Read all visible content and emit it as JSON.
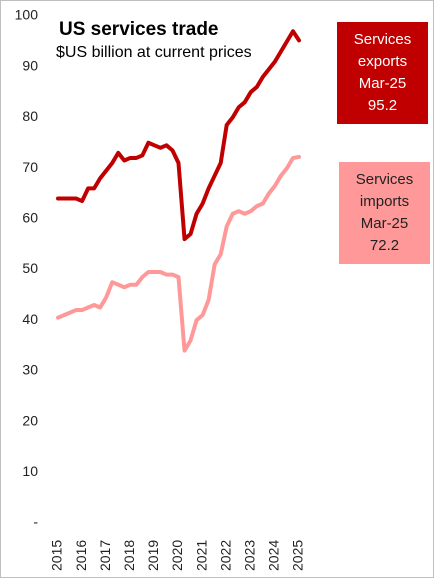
{
  "chart_data": {
    "type": "line",
    "title": "US services trade",
    "subtitle": "$US billion at current prices",
    "latest_label": "Mar-25",
    "categories": [
      "2015",
      null,
      null,
      null,
      "2016",
      null,
      null,
      null,
      "2017",
      null,
      null,
      null,
      "2018",
      null,
      null,
      null,
      "2019",
      null,
      null,
      null,
      "2020",
      null,
      null,
      null,
      "2021",
      null,
      null,
      null,
      "2022",
      null,
      null,
      null,
      "2023",
      null,
      null,
      null,
      "2024",
      null,
      null,
      null,
      "2025"
    ],
    "series": [
      {
        "name": "Services exports",
        "color": "#c00000",
        "values": [
          64,
          64,
          64,
          64,
          63.5,
          66,
          66,
          68,
          69.5,
          71,
          73,
          71.5,
          72,
          72,
          72.5,
          75,
          74.5,
          74,
          74.5,
          73.5,
          71,
          56,
          57,
          61,
          63,
          66,
          68.5,
          71,
          78.5,
          80,
          82,
          83,
          85,
          86,
          88,
          89.5,
          91,
          93,
          95,
          97,
          95.2
        ]
      },
      {
        "name": "Services imports",
        "color": "#ff9999",
        "values": [
          40.5,
          41,
          41.5,
          42,
          42,
          42.5,
          43,
          42.5,
          44.5,
          47.5,
          47,
          46.5,
          47,
          47,
          48.5,
          49.5,
          49.5,
          49.5,
          49,
          49,
          48.5,
          34,
          36,
          40,
          41,
          44,
          51,
          53,
          58.5,
          61,
          61.5,
          61,
          61.5,
          62.5,
          63,
          65,
          66.5,
          68.5,
          70,
          72,
          72.2
        ]
      }
    ],
    "ylim": [
      0,
      100
    ],
    "yticks": [
      {
        "value": 0,
        "label": "-"
      },
      10,
      20,
      30,
      40,
      50,
      60,
      70,
      80,
      90,
      100
    ],
    "grid": false
  }
}
